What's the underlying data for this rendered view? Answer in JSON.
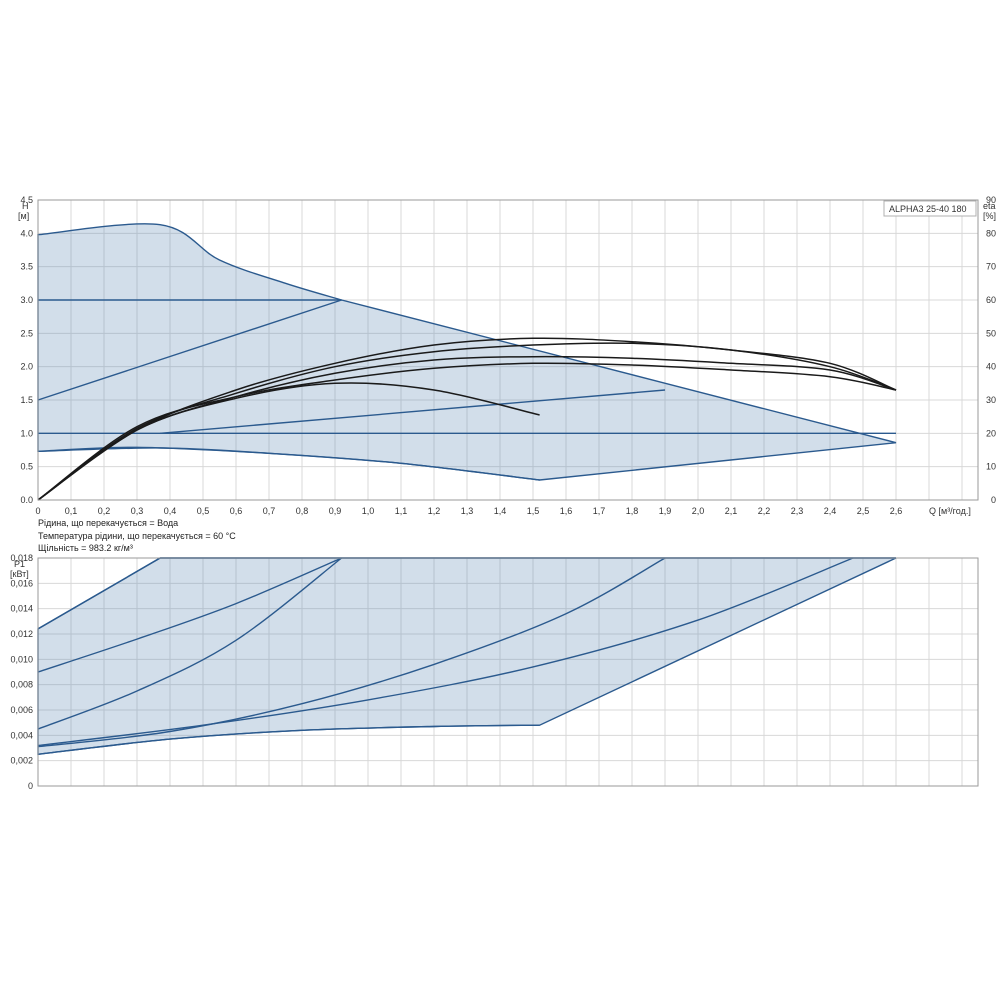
{
  "colors": {
    "area_fill": "#c9d6e4",
    "blue_curve": "#2b5a8e",
    "black_curve": "#1a1a1a",
    "grid": "#d8d8d8"
  },
  "chart_data": [
    {
      "type": "line",
      "title": "ALPHA3 25-40 180",
      "ylabel_top": "H",
      "ylabel_unit": "[м]",
      "y2label_top": "eta",
      "y2label_unit": "[%]",
      "xlabel": "Q [м³/год.]",
      "xlim": [
        0,
        2.85
      ],
      "ylim": [
        0,
        4.5
      ],
      "y2lim": [
        0,
        90
      ],
      "xticks": [
        "0",
        "0,1",
        "0,2",
        "0,3",
        "0,4",
        "0,5",
        "0,6",
        "0,7",
        "0,8",
        "0,9",
        "1,0",
        "1,1",
        "1,2",
        "1,3",
        "1,4",
        "1,5",
        "1,6",
        "1,7",
        "1,8",
        "1,9",
        "2,0",
        "2,1",
        "2,2",
        "2,3",
        "2,4",
        "2,5",
        "2,6"
      ],
      "yticks": [
        "0.0",
        "0.5",
        "1.0",
        "1.5",
        "2.0",
        "2.5",
        "3.0",
        "3.5",
        "4.0",
        "4.5"
      ],
      "y2ticks": [
        "0",
        "10",
        "20",
        "30",
        "40",
        "50",
        "60",
        "70",
        "80",
        "90"
      ],
      "grid": true,
      "legend_placement": "top-right",
      "operating_area": {
        "x": [
          0,
          0.37,
          0.92,
          2.6,
          1.52,
          0.37,
          0
        ],
        "y": [
          3.98,
          4.13,
          3.0,
          0.86,
          0.3,
          0.78,
          0.73
        ]
      },
      "series_head": [
        {
          "x": [
            0,
            0.92
          ],
          "y": [
            3.0,
            3.0
          ]
        },
        {
          "x": [
            0,
            0.92
          ],
          "y": [
            1.5,
            3.0
          ]
        },
        {
          "x": [
            0,
            2.6
          ],
          "y": [
            1.0,
            1.0
          ]
        },
        {
          "x": [
            0.37,
            1.9
          ],
          "y": [
            1.0,
            1.65
          ]
        },
        {
          "x": [
            0,
            0.3,
            0.7,
            1.1,
            1.52
          ],
          "y": [
            0.73,
            0.79,
            0.7,
            0.55,
            0.3
          ]
        }
      ],
      "series_eta": [
        {
          "x": [
            0,
            0.3,
            0.6,
            0.9,
            1.2,
            1.5,
            1.8,
            2.1,
            2.4,
            2.6
          ],
          "y": [
            0,
            22,
            31,
            36,
            39.5,
            41,
            40.5,
            39,
            37,
            33
          ]
        },
        {
          "x": [
            0,
            0.3,
            0.6,
            0.9,
            1.2,
            1.5,
            1.8,
            2.1,
            2.4,
            2.6
          ],
          "y": [
            0,
            21.5,
            32,
            40,
            44.5,
            46.5,
            47,
            45,
            40,
            33
          ]
        },
        {
          "x": [
            0,
            0.3,
            0.6,
            0.9,
            1.2,
            1.5,
            1.8,
            2.1,
            2.4,
            2.6
          ],
          "y": [
            0,
            21,
            33,
            41,
            46.5,
            48.5,
            47.5,
            45,
            41,
            33
          ]
        },
        {
          "x": [
            0,
            0.3,
            0.6,
            0.9,
            1.2,
            1.5,
            1.8,
            2.1,
            2.4,
            2.6
          ],
          "y": [
            0,
            21,
            31,
            38,
            42,
            43,
            42.5,
            41,
            39,
            33
          ]
        },
        {
          "x": [
            0,
            0.3,
            0.6,
            0.9,
            1.2,
            1.52
          ],
          "y": [
            0,
            21,
            30.5,
            35,
            33,
            25.5
          ]
        }
      ]
    },
    {
      "type": "line",
      "ylabel_top": "P1",
      "ylabel_unit": "[кВт]",
      "xlim": [
        0,
        2.85
      ],
      "ylim": [
        0,
        0.018
      ],
      "yticks": [
        "0",
        "0,002",
        "0,004",
        "0,006",
        "0,008",
        "0,010",
        "0,012",
        "0,014",
        "0,016",
        "0,018"
      ],
      "grid": true,
      "operating_area": {
        "x": [
          0,
          0.37,
          2.6,
          1.52,
          0
        ],
        "y": [
          0.0124,
          0.018,
          0.018,
          0.0048,
          0.0025
        ]
      },
      "series": [
        {
          "x": [
            0,
            0.37
          ],
          "y": [
            0.0124,
            0.018
          ]
        },
        {
          "x": [
            0.37,
            2.6
          ],
          "y": [
            0.018,
            0.018
          ]
        },
        {
          "x": [
            0,
            0.3,
            0.6,
            0.92
          ],
          "y": [
            0.009,
            0.0116,
            0.0144,
            0.018
          ]
        },
        {
          "x": [
            0,
            0.3,
            0.6,
            0.92
          ],
          "y": [
            0.0045,
            0.0075,
            0.0115,
            0.018
          ]
        },
        {
          "x": [
            0,
            0.4,
            0.8,
            1.2,
            1.6,
            1.9
          ],
          "y": [
            0.0031,
            0.0043,
            0.0065,
            0.0096,
            0.0136,
            0.018
          ]
        },
        {
          "x": [
            0,
            0.5,
            1.0,
            1.5,
            2.0,
            2.47
          ],
          "y": [
            0.0032,
            0.0048,
            0.0068,
            0.0094,
            0.0131,
            0.018
          ]
        },
        {
          "x": [
            0,
            0.4,
            0.8,
            1.2,
            1.52
          ],
          "y": [
            0.0025,
            0.0037,
            0.0044,
            0.0047,
            0.0048
          ]
        }
      ]
    }
  ],
  "notes": {
    "fluid": "Рідина, що перекачується = Вода",
    "temperature": "Температура рідини, що перекачується = 60 °C",
    "density": "Щільність = 983.2 кг/м³"
  }
}
